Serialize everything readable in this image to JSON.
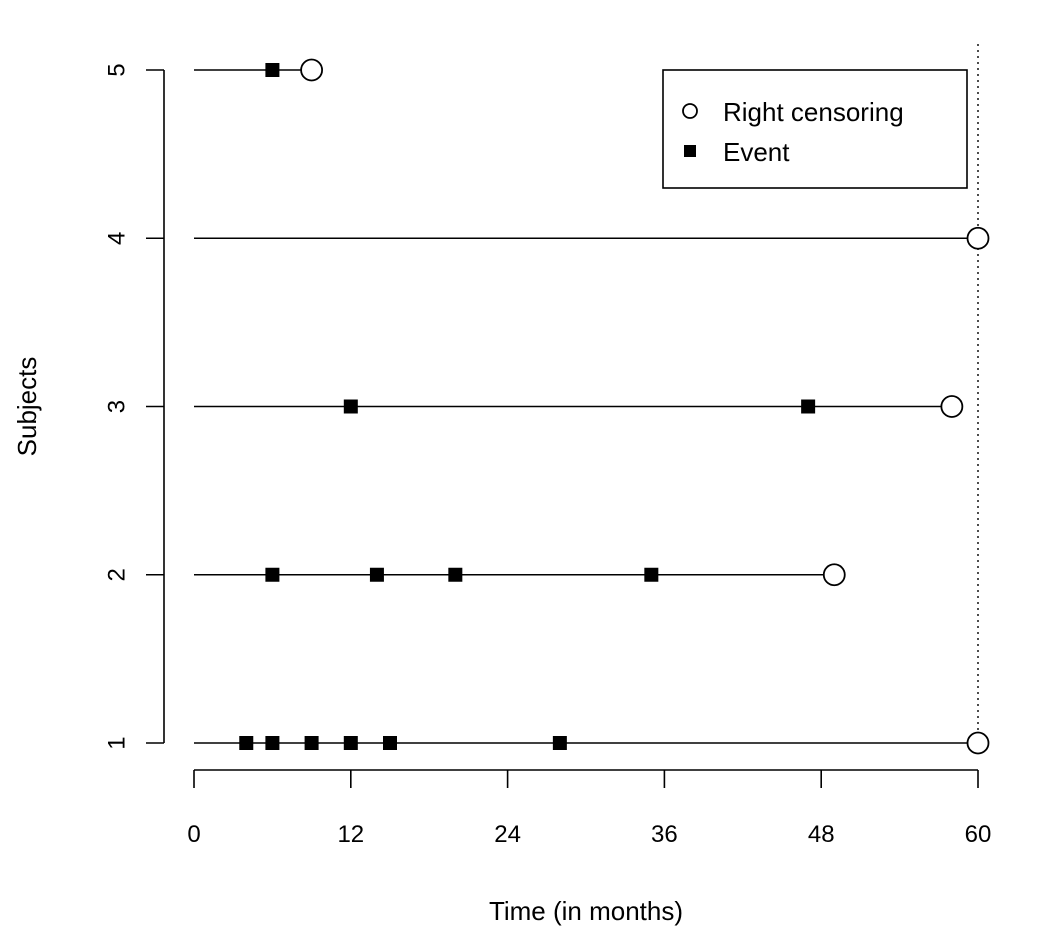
{
  "chart_data": {
    "type": "scatter",
    "xlabel": "Time (in months)",
    "ylabel": "Subjects",
    "xlim": [
      0,
      60
    ],
    "ylim": [
      1,
      5
    ],
    "x_ticks": [
      "0",
      "12",
      "24",
      "36",
      "48",
      "60"
    ],
    "y_ticks": [
      "1",
      "2",
      "3",
      "4",
      "5"
    ],
    "reference_line_x": 60,
    "legend": {
      "placement": "top-right",
      "entries": [
        {
          "label": "Right censoring",
          "marker": "open-circle"
        },
        {
          "label": "Event",
          "marker": "filled-square"
        }
      ]
    },
    "subjects": [
      {
        "subject": 1,
        "end": 60,
        "censored_at": 60,
        "events": [
          4,
          6,
          9,
          12,
          15,
          28
        ]
      },
      {
        "subject": 2,
        "end": 49,
        "censored_at": 49,
        "events": [
          6,
          14,
          20,
          35
        ]
      },
      {
        "subject": 3,
        "end": 58,
        "censored_at": 58,
        "events": [
          12,
          47
        ]
      },
      {
        "subject": 4,
        "end": 60,
        "censored_at": 60,
        "events": []
      },
      {
        "subject": 5,
        "end": 9,
        "censored_at": 9,
        "events": [
          6
        ]
      }
    ]
  }
}
